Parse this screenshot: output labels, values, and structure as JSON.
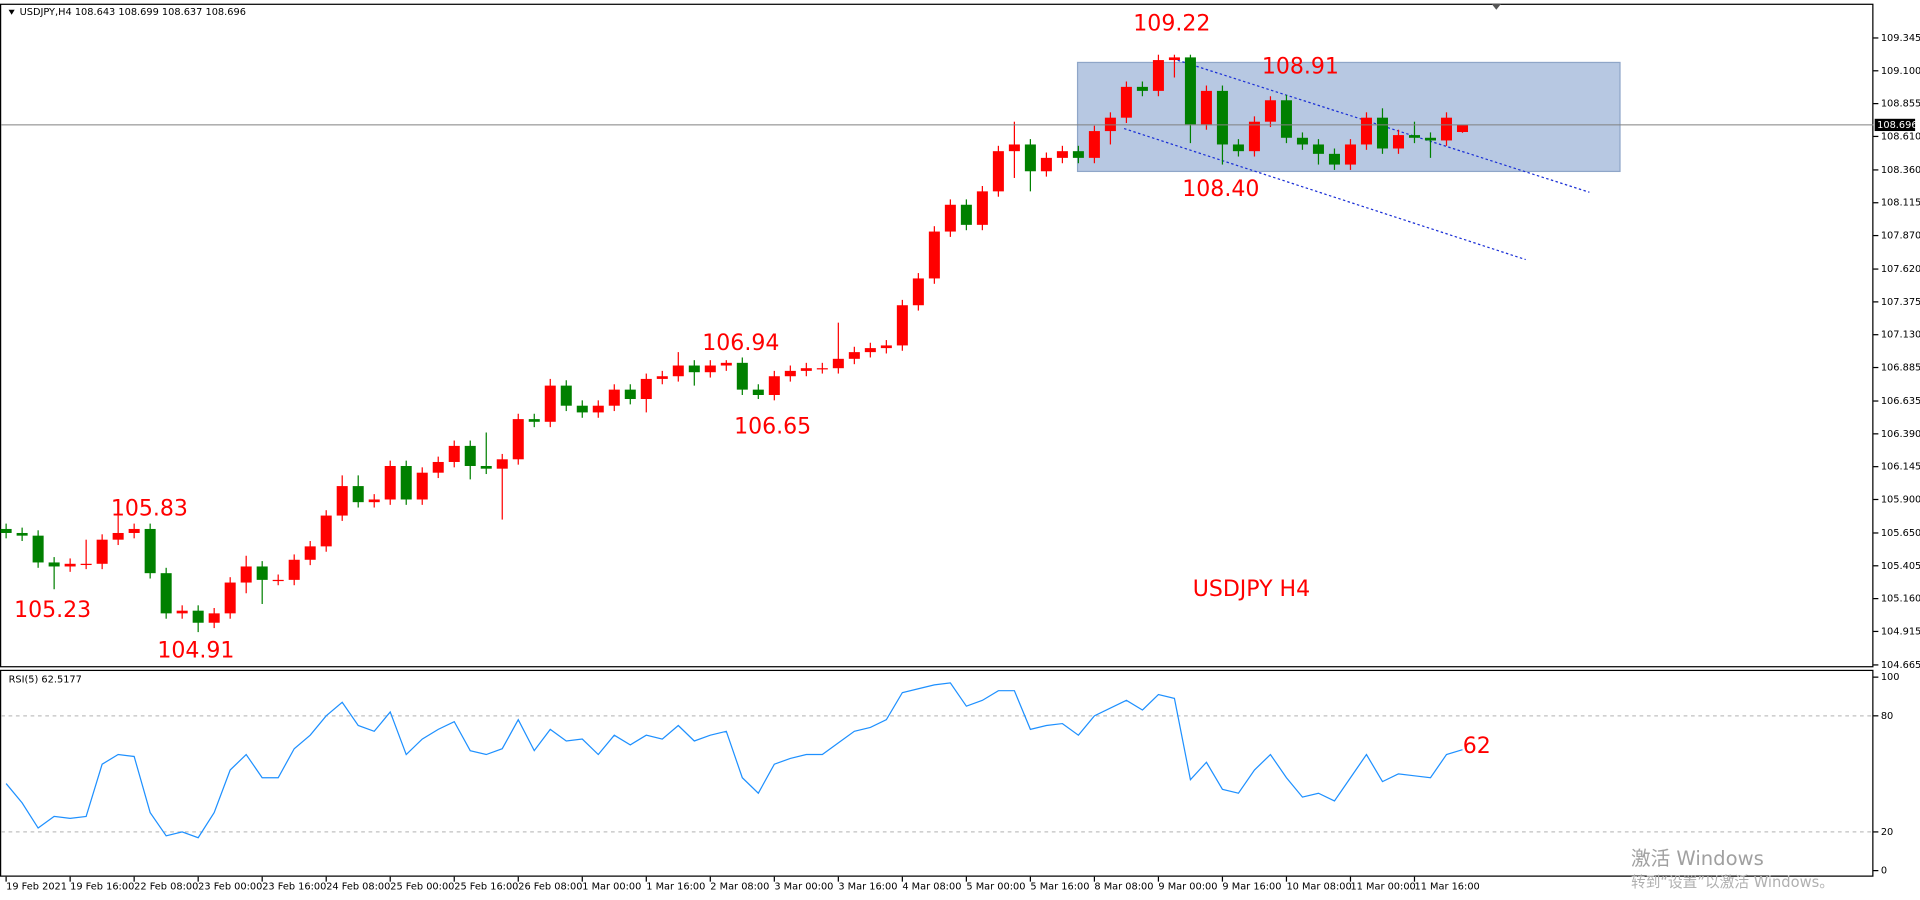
{
  "chart_data": {
    "type": "candlestick",
    "title": "USDJPY,H4  108.643 108.699 108.637 108.696",
    "categories": [
      "19 Feb 2021",
      null,
      null,
      null,
      "19 Feb 16:00",
      null,
      null,
      null,
      "22 Feb 08:00",
      null,
      null,
      null,
      "23 Feb 00:00",
      null,
      null,
      null,
      "23 Feb 16:00",
      null,
      null,
      null,
      "24 Feb 08:00",
      null,
      null,
      null,
      "25 Feb 00:00",
      null,
      null,
      null,
      "25 Feb 16:00",
      null,
      null,
      null,
      "26 Feb 08:00",
      null,
      null,
      null,
      "1 Mar 00:00",
      null,
      null,
      null,
      "1 Mar 16:00",
      null,
      null,
      null,
      "2 Mar 08:00",
      null,
      null,
      null,
      "3 Mar 00:00",
      null,
      null,
      null,
      "3 Mar 16:00",
      null,
      null,
      null,
      "4 Mar 08:00",
      null,
      null,
      null,
      "5 Mar 00:00",
      null,
      null,
      null,
      "5 Mar 16:00",
      null,
      null,
      null,
      "8 Mar 08:00",
      null,
      null,
      null,
      "9 Mar 00:00",
      null,
      null,
      null,
      "9 Mar 16:00",
      null,
      null,
      null,
      "10 Mar 08:00",
      null,
      null,
      null,
      "11 Mar 00:00",
      null,
      null,
      null,
      "11 Mar 16:00",
      null,
      null,
      null
    ],
    "open": [
      105.68,
      105.65,
      105.63,
      105.43,
      105.4,
      105.42,
      105.42,
      105.6,
      105.65,
      105.68,
      105.35,
      105.05,
      105.07,
      104.98,
      105.05,
      105.28,
      105.4,
      105.3,
      105.3,
      105.45,
      105.55,
      105.78,
      106.0,
      105.88,
      105.9,
      106.15,
      105.9,
      106.1,
      106.18,
      106.3,
      106.15,
      106.13,
      106.2,
      106.5,
      106.48,
      106.75,
      106.6,
      106.55,
      106.6,
      106.72,
      106.65,
      106.8,
      106.82,
      106.9,
      106.85,
      106.9,
      106.92,
      106.72,
      106.68,
      106.82,
      106.86,
      106.88,
      106.88,
      106.95,
      107.0,
      107.03,
      107.05,
      107.35,
      107.55,
      107.9,
      108.1,
      107.95,
      108.2,
      108.5,
      108.55,
      108.35,
      108.45,
      108.5,
      108.45,
      108.65,
      108.75,
      108.98,
      108.95,
      109.18,
      109.2,
      108.7,
      108.95,
      108.55,
      108.5,
      108.72,
      108.88,
      108.6,
      108.55,
      108.48,
      108.4,
      108.55,
      108.75,
      108.52,
      108.62,
      108.6,
      108.58,
      108.643
    ],
    "high": [
      105.72,
      105.69,
      105.67,
      105.47,
      105.46,
      105.6,
      105.64,
      105.83,
      105.72,
      105.72,
      105.39,
      105.11,
      105.11,
      105.09,
      105.32,
      105.48,
      105.44,
      105.34,
      105.49,
      105.59,
      105.82,
      106.08,
      106.08,
      105.94,
      106.19,
      106.19,
      106.14,
      106.22,
      106.34,
      106.34,
      106.4,
      106.24,
      106.54,
      106.54,
      106.8,
      106.79,
      106.64,
      106.64,
      106.76,
      106.76,
      106.84,
      106.86,
      107.0,
      106.94,
      106.94,
      106.94,
      106.96,
      106.76,
      106.86,
      106.9,
      106.92,
      106.92,
      107.22,
      107.04,
      107.07,
      107.09,
      107.39,
      107.59,
      107.94,
      108.14,
      108.14,
      108.24,
      108.54,
      108.72,
      108.59,
      108.49,
      108.54,
      108.54,
      108.69,
      108.79,
      109.02,
      109.02,
      109.22,
      109.22,
      109.22,
      108.99,
      108.99,
      108.59,
      108.76,
      108.91,
      108.92,
      108.64,
      108.59,
      108.52,
      108.59,
      108.79,
      108.82,
      108.66,
      108.72,
      108.64,
      108.79,
      108.699
    ],
    "low": [
      105.61,
      105.59,
      105.39,
      105.23,
      105.36,
      105.38,
      105.38,
      105.56,
      105.61,
      105.31,
      105.01,
      105.01,
      104.91,
      104.94,
      105.01,
      105.2,
      105.12,
      105.26,
      105.26,
      105.41,
      105.51,
      105.74,
      105.84,
      105.84,
      105.86,
      105.86,
      105.86,
      106.06,
      106.14,
      106.05,
      106.09,
      105.75,
      106.16,
      106.44,
      106.44,
      106.56,
      106.51,
      106.51,
      106.56,
      106.61,
      106.55,
      106.76,
      106.78,
      106.75,
      106.81,
      106.86,
      106.68,
      106.65,
      106.64,
      106.78,
      106.82,
      106.84,
      106.84,
      106.91,
      106.96,
      106.99,
      107.01,
      107.31,
      107.51,
      107.86,
      107.91,
      107.91,
      108.16,
      108.3,
      108.2,
      108.31,
      108.41,
      108.41,
      108.41,
      108.55,
      108.71,
      108.91,
      108.91,
      109.05,
      108.56,
      108.66,
      108.4,
      108.46,
      108.46,
      108.68,
      108.56,
      108.51,
      108.4,
      108.36,
      108.36,
      108.51,
      108.48,
      108.48,
      108.56,
      108.45,
      108.54,
      108.637
    ],
    "close": [
      105.65,
      105.63,
      105.43,
      105.4,
      105.42,
      105.42,
      105.6,
      105.65,
      105.68,
      105.35,
      105.05,
      105.07,
      104.98,
      105.05,
      105.28,
      105.4,
      105.3,
      105.3,
      105.45,
      105.55,
      105.78,
      106.0,
      105.88,
      105.9,
      106.15,
      105.9,
      106.1,
      106.18,
      106.3,
      106.15,
      106.13,
      106.2,
      106.5,
      106.48,
      106.75,
      106.6,
      106.55,
      106.6,
      106.72,
      106.65,
      106.8,
      106.82,
      106.9,
      106.85,
      106.9,
      106.92,
      106.72,
      106.68,
      106.82,
      106.86,
      106.88,
      106.88,
      106.95,
      107.0,
      107.03,
      107.05,
      107.35,
      107.55,
      107.9,
      108.1,
      107.95,
      108.2,
      108.5,
      108.55,
      108.35,
      108.45,
      108.5,
      108.45,
      108.65,
      108.75,
      108.98,
      108.95,
      109.18,
      109.2,
      108.7,
      108.95,
      108.55,
      108.5,
      108.72,
      108.88,
      108.6,
      108.55,
      108.48,
      108.4,
      108.55,
      108.75,
      108.52,
      108.62,
      108.6,
      108.58,
      108.75,
      108.696
    ],
    "colors": {
      "up": "#ff0000",
      "down": "#008000"
    },
    "ylim": [
      104.647,
      109.601
    ],
    "yticks": [
      109.345,
      {
        "value": 109.1,
        "label": "109.100"
      },
      108.855,
      {
        "value": 108.61,
        "label": "108.610"
      },
      {
        "value": 108.36,
        "label": "108.360"
      },
      108.115,
      {
        "value": 107.87,
        "label": "107.870"
      },
      {
        "value": 107.62,
        "label": "107.620"
      },
      107.375,
      {
        "value": 107.13,
        "label": "107.130"
      },
      106.885,
      106.635,
      {
        "value": 106.39,
        "label": "106.390"
      },
      106.145,
      {
        "value": 105.9,
        "label": "105.900"
      },
      {
        "value": 105.65,
        "label": "105.650"
      },
      105.405,
      {
        "value": 105.16,
        "label": "105.160"
      },
      104.915,
      104.665
    ],
    "annotations": [
      {
        "text": "109.22",
        "color": "#ff0000"
      },
      {
        "text": "108.91",
        "color": "#ff0000"
      },
      {
        "text": "108.40",
        "color": "#ff0000"
      },
      {
        "text": "106.94",
        "color": "#ff0000"
      },
      {
        "text": "106.65",
        "color": "#ff0000"
      },
      {
        "text": "105.83",
        "color": "#ff0000"
      },
      {
        "text": "105.23",
        "color": "#ff0000"
      },
      {
        "text": "104.91",
        "color": "#ff0000"
      },
      {
        "text": "USDJPY H4",
        "color": "#ff0000"
      },
      {
        "text": "62",
        "color": "#ff0000"
      }
    ],
    "indicator": {
      "type": "line",
      "title": "RSI(5) 62.5177",
      "color": "#1e90ff",
      "values": [
        45,
        35,
        22,
        28,
        27,
        28,
        55,
        60,
        59,
        30,
        18,
        20,
        17,
        30,
        52,
        60,
        48,
        48,
        63,
        70,
        80,
        87,
        75,
        72,
        82,
        60,
        68,
        73,
        77,
        62,
        60,
        63,
        78,
        62,
        73,
        67,
        68,
        60,
        70,
        65,
        70,
        68,
        75,
        67,
        70,
        72,
        48,
        40,
        55,
        58,
        60,
        60,
        66,
        72,
        74,
        78,
        92,
        94,
        96,
        97,
        85,
        88,
        93,
        93,
        73,
        75,
        76,
        70,
        80,
        84,
        88,
        83,
        91,
        89,
        47,
        56,
        42,
        40,
        52,
        60,
        48,
        38,
        40,
        36,
        48,
        60,
        46,
        50,
        49,
        48,
        60,
        62.5177
      ],
      "ylim": [
        0,
        100
      ],
      "yticks": [
        0,
        20,
        80,
        100
      ],
      "levels": [
        20,
        80
      ]
    },
    "watermark": [
      "激活 Windows",
      "转到“设置”以激活 Windows。"
    ]
  }
}
